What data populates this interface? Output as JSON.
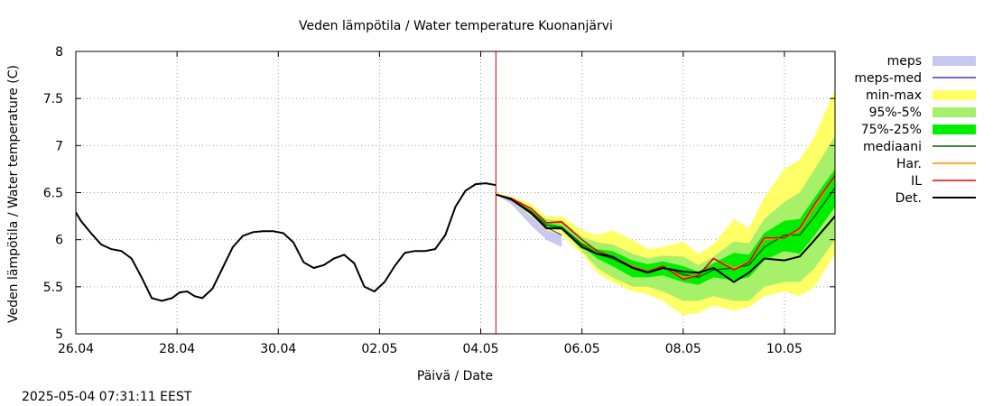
{
  "timestamp": "2025-05-04 07:31:11 EEST",
  "chart_data": {
    "type": "line",
    "title": "Veden lämpötila / Water temperature Kuonanjärvi",
    "xlabel": "Päivä / Date",
    "ylabel": "Veden lämpötila / Water temperature (C)",
    "xlim": [
      0,
      15
    ],
    "ylim": [
      5,
      8
    ],
    "grid": true,
    "legend_position": "right",
    "x_unit": "days from 26.04",
    "x_ticks": [
      {
        "x": 0,
        "label": "26.04"
      },
      {
        "x": 2,
        "label": "28.04"
      },
      {
        "x": 4,
        "label": "30.04"
      },
      {
        "x": 6,
        "label": "02.05"
      },
      {
        "x": 8,
        "label": "04.05"
      },
      {
        "x": 10,
        "label": "06.05"
      },
      {
        "x": 12,
        "label": "08.05"
      },
      {
        "x": 14,
        "label": "10.05"
      }
    ],
    "y_ticks": [
      {
        "y": 5,
        "label": "5"
      },
      {
        "y": 5.5,
        "label": "5.5"
      },
      {
        "y": 6,
        "label": "6"
      },
      {
        "y": 6.5,
        "label": "6.5"
      },
      {
        "y": 7,
        "label": "7"
      },
      {
        "y": 7.5,
        "label": "7.5"
      },
      {
        "y": 8,
        "label": "8"
      }
    ],
    "forecast_start_x": 8.3,
    "colors": {
      "meps": "#c8c8f0",
      "meps_med": "#3a3ac8",
      "minmax": "#ffff66",
      "p95_5": "#a6f06a",
      "p75_25": "#00ee00",
      "mediaani": "#006400",
      "har": "#ff8c00",
      "il": "#e00000",
      "det": "#000000",
      "forecast_line": "#cc0000",
      "grid": "#a0a0a0"
    },
    "legend": [
      {
        "key": "meps",
        "label": "meps",
        "kind": "band"
      },
      {
        "key": "meps_med",
        "label": "meps-med",
        "kind": "line"
      },
      {
        "key": "minmax",
        "label": "min-max",
        "kind": "band"
      },
      {
        "key": "p95_5",
        "label": "95%-5%",
        "kind": "band"
      },
      {
        "key": "p75_25",
        "label": "75%-25%",
        "kind": "band"
      },
      {
        "key": "mediaani",
        "label": "mediaani",
        "kind": "line"
      },
      {
        "key": "har",
        "label": "Har.",
        "kind": "line"
      },
      {
        "key": "il",
        "label": "IL",
        "kind": "line"
      },
      {
        "key": "det",
        "label": "Det.",
        "kind": "line"
      }
    ],
    "observed": {
      "x": [
        0,
        0.1,
        0.3,
        0.5,
        0.7,
        0.9,
        1.1,
        1.3,
        1.5,
        1.7,
        1.9,
        2.05,
        2.2,
        2.35,
        2.5,
        2.7,
        2.9,
        3.1,
        3.3,
        3.5,
        3.7,
        3.9,
        4.1,
        4.3,
        4.5,
        4.7,
        4.9,
        5.1,
        5.3,
        5.5,
        5.7,
        5.9,
        6.1,
        6.3,
        6.5,
        6.7,
        6.9,
        7.1,
        7.3,
        7.5,
        7.7,
        7.9,
        8.1,
        8.3
      ],
      "y": [
        6.29,
        6.2,
        6.07,
        5.95,
        5.9,
        5.88,
        5.8,
        5.6,
        5.38,
        5.35,
        5.38,
        5.44,
        5.45,
        5.4,
        5.38,
        5.48,
        5.7,
        5.92,
        6.04,
        6.08,
        6.09,
        6.09,
        6.07,
        5.97,
        5.76,
        5.7,
        5.73,
        5.8,
        5.84,
        5.75,
        5.5,
        5.45,
        5.55,
        5.72,
        5.86,
        5.88,
        5.88,
        5.9,
        6.05,
        6.35,
        6.52,
        6.59,
        6.6,
        6.58
      ]
    },
    "forecast_x": [
      8.3,
      8.6,
      9.0,
      9.3,
      9.6,
      10.0,
      10.3,
      10.6,
      11.0,
      11.3,
      11.6,
      12.0,
      12.3,
      12.6,
      13.0,
      13.3,
      13.6,
      14.0,
      14.3,
      14.6,
      15.0
    ],
    "forecast": {
      "minmax_high": [
        6.5,
        6.46,
        6.38,
        6.25,
        6.25,
        6.1,
        6.05,
        6.1,
        6.0,
        5.9,
        5.92,
        5.98,
        5.85,
        5.95,
        6.22,
        6.12,
        6.45,
        6.75,
        6.85,
        7.1,
        7.6
      ],
      "minmax_low": [
        6.48,
        6.42,
        6.25,
        6.1,
        6.05,
        5.85,
        5.65,
        5.55,
        5.45,
        5.42,
        5.35,
        5.2,
        5.22,
        5.3,
        5.25,
        5.28,
        5.4,
        5.45,
        5.4,
        5.5,
        5.85
      ],
      "p95_high": [
        6.49,
        6.45,
        6.33,
        6.22,
        6.2,
        6.03,
        5.97,
        5.95,
        5.85,
        5.8,
        5.83,
        5.82,
        5.73,
        5.82,
        5.98,
        5.96,
        6.22,
        6.4,
        6.5,
        6.75,
        7.1
      ],
      "p95_low": [
        6.48,
        6.42,
        6.28,
        6.12,
        6.1,
        5.88,
        5.7,
        5.6,
        5.5,
        5.5,
        5.45,
        5.35,
        5.35,
        5.4,
        5.35,
        5.35,
        5.5,
        5.55,
        5.55,
        5.7,
        6.0
      ],
      "p75_high": [
        6.49,
        6.44,
        6.3,
        6.18,
        6.15,
        5.97,
        5.9,
        5.88,
        5.78,
        5.74,
        5.77,
        5.72,
        5.66,
        5.75,
        5.86,
        5.84,
        6.07,
        6.2,
        6.22,
        6.45,
        6.75
      ],
      "p75_low": [
        6.48,
        6.43,
        6.3,
        6.15,
        6.12,
        5.93,
        5.8,
        5.72,
        5.6,
        5.6,
        5.62,
        5.55,
        5.52,
        5.6,
        5.57,
        5.6,
        5.78,
        5.88,
        5.85,
        6.05,
        6.35
      ],
      "mediaani": [
        6.48,
        6.43,
        6.3,
        6.15,
        6.13,
        5.95,
        5.85,
        5.8,
        5.7,
        5.66,
        5.7,
        5.63,
        5.6,
        5.68,
        5.7,
        5.73,
        5.92,
        6.05,
        6.05,
        6.25,
        6.55
      ],
      "har": [
        6.48,
        6.44,
        6.33,
        6.18,
        6.18,
        6.0,
        5.88,
        5.82,
        5.72,
        5.66,
        5.72,
        5.6,
        5.62,
        5.8,
        5.7,
        5.76,
        6.0,
        6.02,
        6.1,
        6.35,
        6.68
      ],
      "il": [
        6.48,
        6.44,
        6.33,
        6.18,
        6.19,
        6.0,
        5.88,
        5.82,
        5.71,
        5.66,
        5.72,
        5.58,
        5.62,
        5.8,
        5.68,
        5.76,
        6.02,
        6.02,
        6.12,
        6.38,
        6.68
      ],
      "det": [
        6.48,
        6.43,
        6.28,
        6.12,
        6.12,
        5.92,
        5.85,
        5.82,
        5.7,
        5.65,
        5.7,
        5.66,
        5.65,
        5.7,
        5.55,
        5.65,
        5.8,
        5.78,
        5.82,
        6.0,
        6.25
      ],
      "meps_high": [
        6.48,
        6.44,
        6.33,
        6.2,
        6.15
      ],
      "meps_low": [
        6.48,
        6.38,
        6.15,
        6.0,
        5.92
      ],
      "meps_med": [
        6.48,
        6.42,
        6.3,
        6.13,
        6.05
      ]
    }
  }
}
